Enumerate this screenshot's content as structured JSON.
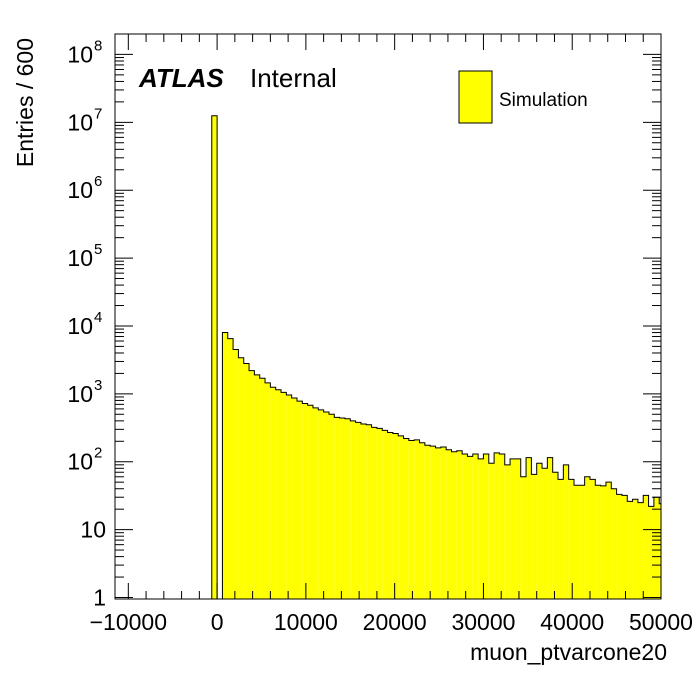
{
  "colors": {
    "fill": "#ffff00",
    "line": "#000000",
    "background": "#ffffff"
  },
  "chart_data": {
    "type": "bar",
    "title": "",
    "xlabel": "muon_ptvarcone20",
    "ylabel": "Entries / 600",
    "xlim": [
      -11500,
      50000
    ],
    "ylim": [
      0.95,
      200000000
    ],
    "yscale": "log",
    "grid": false,
    "legend": {
      "position": "top-right",
      "entries": [
        {
          "label": "Simulation",
          "color": "#ffff00"
        }
      ]
    },
    "annotations": {
      "atlas": "ATLAS",
      "status": "Internal"
    },
    "x_ticks": [
      {
        "value": -10000,
        "label": "−10000"
      },
      {
        "value": 0,
        "label": "0"
      },
      {
        "value": 10000,
        "label": "10000"
      },
      {
        "value": 20000,
        "label": "20000"
      },
      {
        "value": 30000,
        "label": "30000"
      },
      {
        "value": 40000,
        "label": "40000"
      },
      {
        "value": 50000,
        "label": "50000"
      }
    ],
    "y_ticks": [
      {
        "value": 1,
        "base": "1",
        "exp": ""
      },
      {
        "value": 10,
        "base": "10",
        "exp": ""
      },
      {
        "value": 100,
        "base": "10",
        "exp": "2"
      },
      {
        "value": 1000,
        "base": "10",
        "exp": "3"
      },
      {
        "value": 10000,
        "base": "10",
        "exp": "4"
      },
      {
        "value": 100000,
        "base": "10",
        "exp": "5"
      },
      {
        "value": 1000000,
        "base": "10",
        "exp": "6"
      },
      {
        "value": 10000000,
        "base": "10",
        "exp": "7"
      },
      {
        "value": 100000000,
        "base": "10",
        "exp": "8"
      }
    ],
    "bin_width": 600,
    "bin_edges": [
      -600,
      0,
      600,
      1200,
      1800,
      2400,
      3000,
      3600,
      4200,
      4800,
      5400,
      6000,
      6600,
      7200,
      7800,
      8400,
      9000,
      9600,
      10200,
      10800,
      11400,
      12000,
      12600,
      13200,
      13800,
      14400,
      15000,
      15600,
      16200,
      16800,
      17400,
      18000,
      18600,
      19200,
      19800,
      20400,
      21000,
      21600,
      22200,
      22800,
      23400,
      24000,
      24600,
      25200,
      25800,
      26400,
      27000,
      27600,
      28200,
      28800,
      29400,
      30000,
      30600,
      31200,
      31800,
      32400,
      33000,
      33600,
      34200,
      34800,
      35400,
      36000,
      36600,
      37200,
      37800,
      38400,
      39000,
      39600,
      40200,
      40800,
      41400,
      42000,
      42600,
      43200,
      43800,
      44400,
      45000,
      45600,
      46200,
      46800,
      47400,
      48000,
      48600,
      49200,
      49800
    ],
    "values": [
      12500000,
      0,
      8000,
      6500,
      4500,
      3400,
      2800,
      2200,
      1900,
      1700,
      1450,
      1250,
      1150,
      1050,
      960,
      870,
      780,
      720,
      680,
      620,
      580,
      540,
      500,
      450,
      440,
      430,
      400,
      380,
      360,
      350,
      320,
      310,
      290,
      270,
      260,
      240,
      220,
      205,
      210,
      190,
      175,
      170,
      160,
      165,
      150,
      140,
      145,
      130,
      120,
      130,
      110,
      130,
      95,
      135,
      130,
      90,
      110,
      110,
      60,
      115,
      65,
      95,
      80,
      115,
      70,
      55,
      90,
      55,
      45,
      45,
      60,
      55,
      45,
      44,
      50,
      40,
      33,
      32,
      26,
      28,
      25,
      32,
      22,
      30,
      24
    ]
  }
}
